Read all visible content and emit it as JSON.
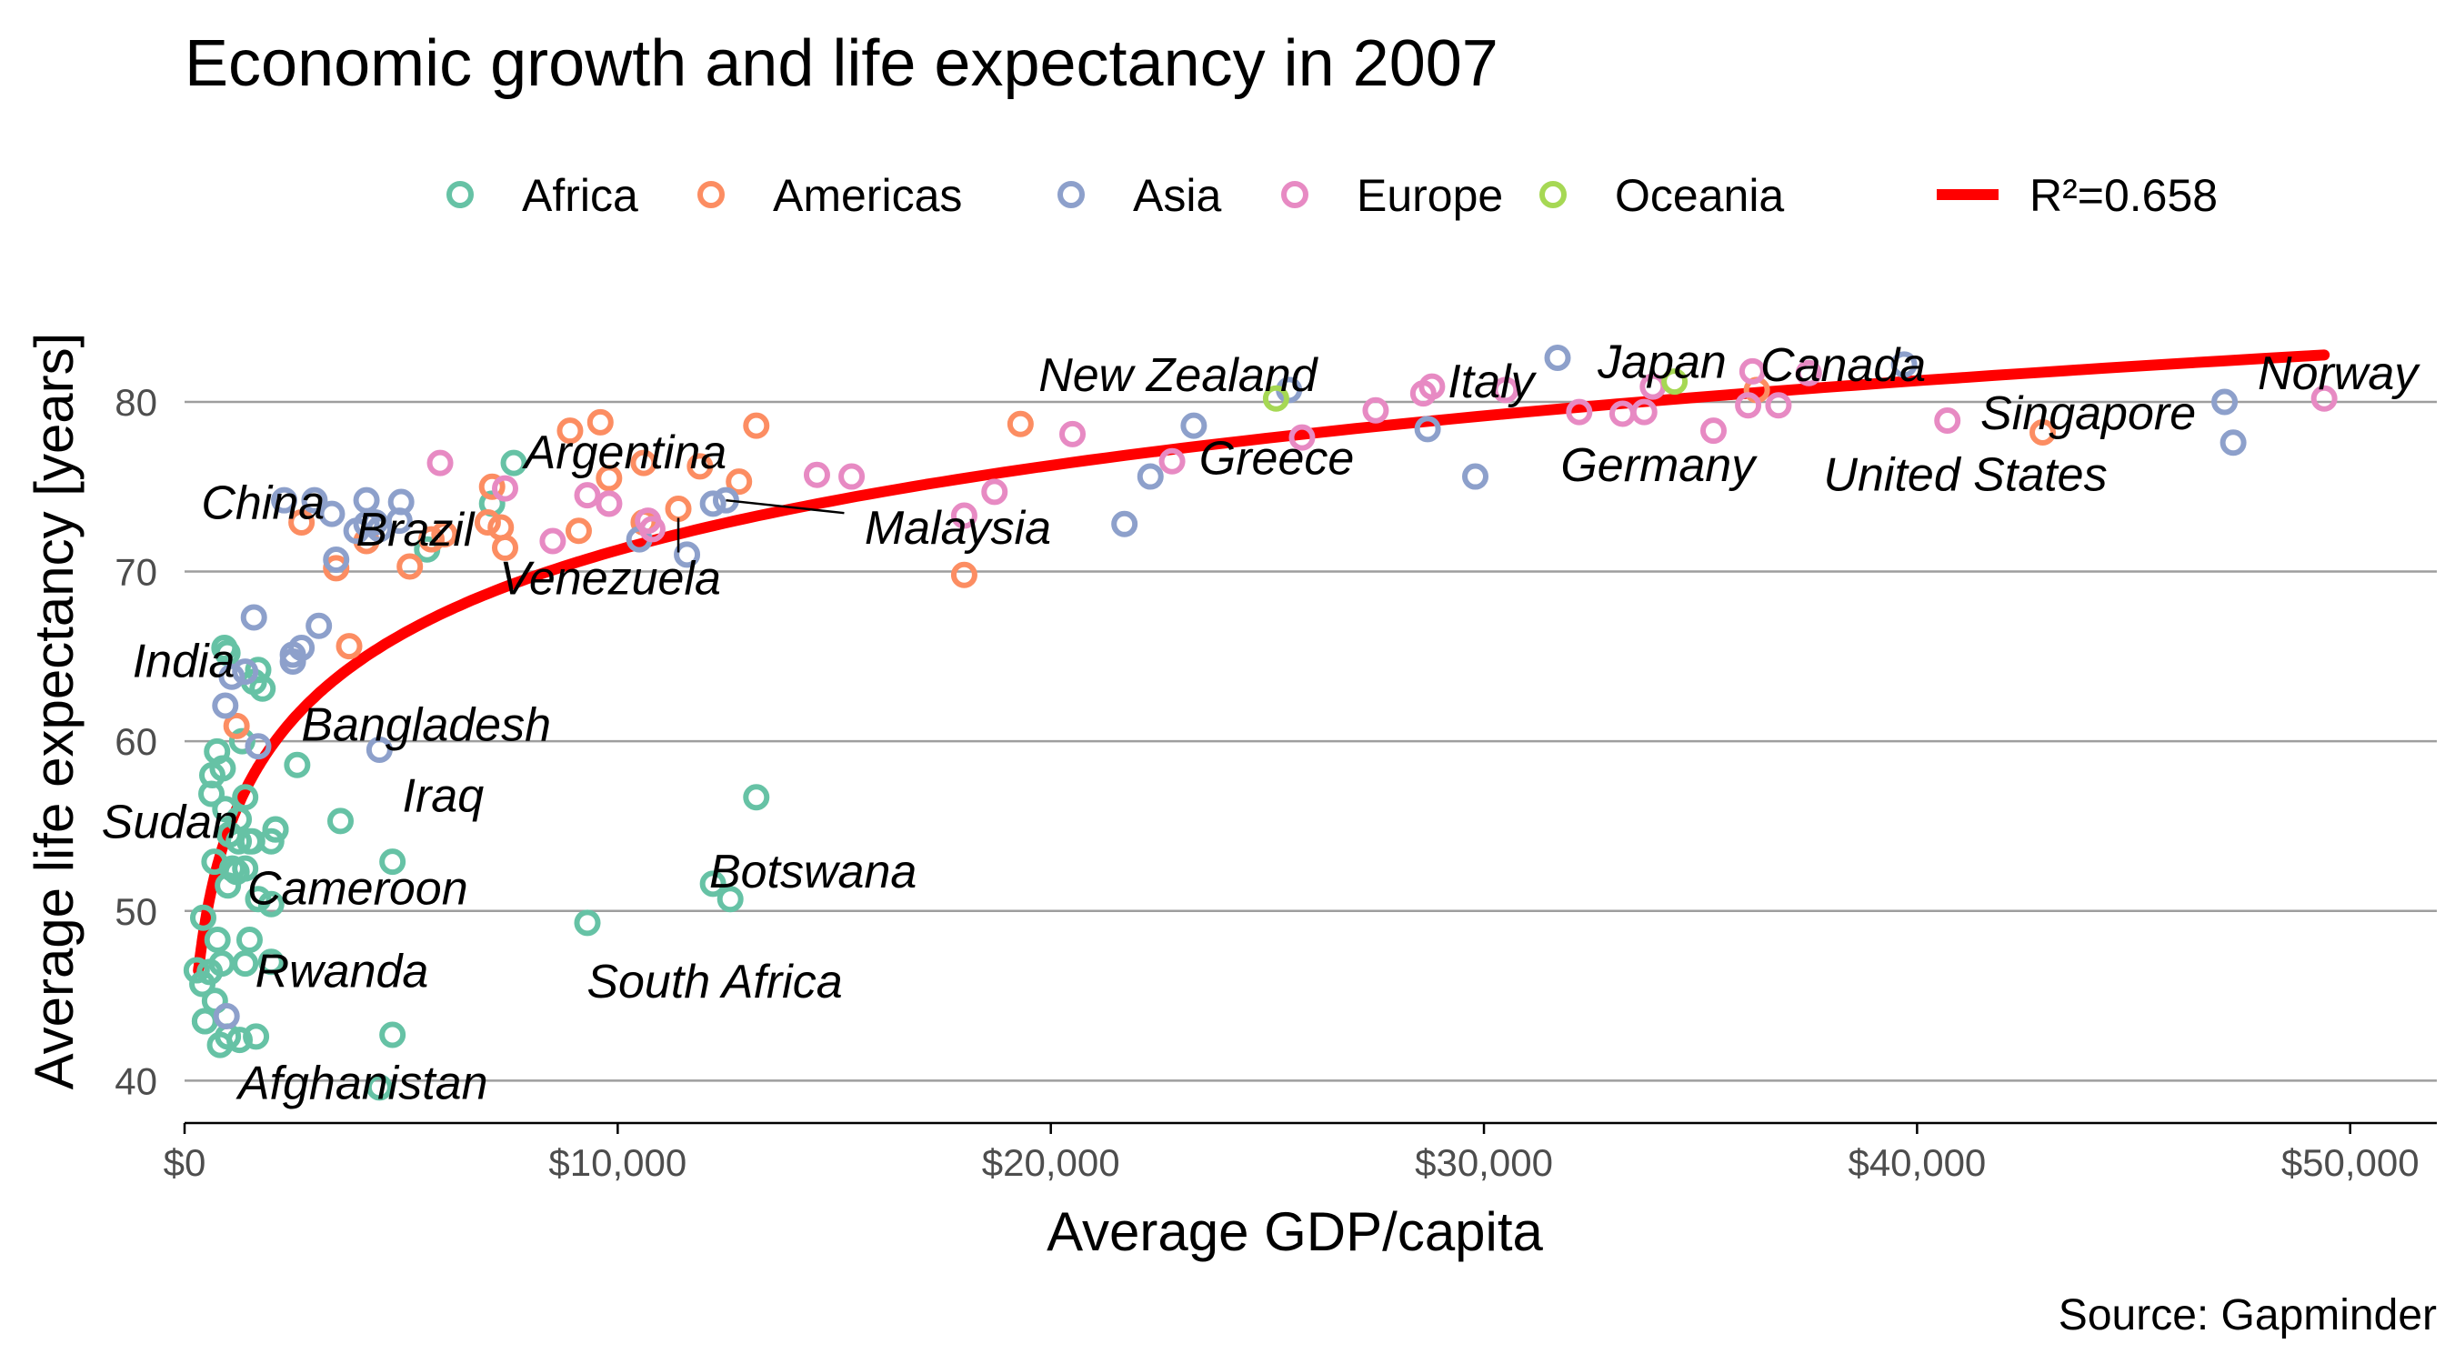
{
  "chart_data": {
    "type": "scatter",
    "title": "Economic growth and life expectancy in 2007",
    "xlabel": "Average GDP/capita",
    "ylabel": "Average life expectancy [years]",
    "caption": "Source: Gapminder",
    "xlim": [
      0,
      52000
    ],
    "ylim": [
      37.5,
      86
    ],
    "xticks": [
      0,
      10000,
      20000,
      30000,
      40000,
      50000
    ],
    "xtick_labels": [
      "$0",
      "$10,000",
      "$20,000",
      "$30,000",
      "$40,000",
      "$50,000"
    ],
    "yticks": [
      40,
      50,
      60,
      70,
      80
    ],
    "ytick_labels": [
      "40",
      "50",
      "60",
      "70",
      "80"
    ],
    "grid": "horizontal",
    "legend_position": "top",
    "fit": {
      "label": "R²=0.658",
      "color": "#ff0000",
      "model": "logarithmic",
      "intercept": 4.95,
      "slope": 7.2
    },
    "series": [
      {
        "name": "Africa",
        "color": "#66c2a5",
        "points": [
          [
            7600,
            76.4
          ],
          [
            2100,
            54.8
          ],
          [
            1400,
            56.7
          ],
          [
            12600,
            50.7
          ],
          [
            1200,
            52.3
          ],
          [
            430,
            49.6
          ],
          [
            2000,
            50.4
          ],
          [
            700,
            44.7
          ],
          [
            1700,
            50.7
          ],
          [
            990,
            65.2
          ],
          [
            280,
            46.5
          ],
          [
            3600,
            55.3
          ],
          [
            1500,
            48.3
          ],
          [
            2100,
            54.8
          ],
          [
            5600,
            71.3
          ],
          [
            12200,
            51.6
          ],
          [
            640,
            58.0
          ],
          [
            690,
            52.9
          ],
          [
            13200,
            56.7
          ],
          [
            750,
            59.4
          ],
          [
            1330,
            60.0
          ],
          [
            940,
            56.0
          ],
          [
            580,
            46.4
          ],
          [
            1500,
            54.1
          ],
          [
            1560,
            54.1
          ],
          [
            2000,
            47.0
          ],
          [
            410,
            45.7
          ],
          [
            760,
            48.3
          ],
          [
            1040,
            54.5
          ],
          [
            1800,
            63.1
          ],
          [
            1700,
            64.2
          ],
          [
            820,
            42.1
          ],
          [
            4800,
            52.9
          ],
          [
            620,
            56.9
          ],
          [
            1400,
            46.9
          ],
          [
            860,
            46.9
          ],
          [
            470,
            43.5
          ],
          [
            1600,
            63.5
          ],
          [
            1250,
            55.4
          ],
          [
            1250,
            54.1
          ],
          [
            1000,
            42.6
          ],
          [
            9300,
            49.3
          ],
          [
            2600,
            58.6
          ],
          [
            1100,
            52.5
          ],
          [
            880,
            58.4
          ],
          [
            7100,
            74.0
          ],
          [
            1000,
            51.5
          ],
          [
            1270,
            42.4
          ],
          [
            470,
            43.5
          ],
          [
            4800,
            42.7
          ],
          [
            4500,
            39.6
          ],
          [
            1650,
            42.6
          ],
          [
            920,
            65.5
          ],
          [
            2000,
            54.1
          ],
          [
            1400,
            52.5
          ]
        ]
      },
      {
        "name": "Americas",
        "color": "#fc8d62",
        "points": [
          [
            12800,
            75.3
          ],
          [
            3800,
            65.6
          ],
          [
            9100,
            72.4
          ],
          [
            36300,
            80.7
          ],
          [
            13200,
            78.6
          ],
          [
            7000,
            72.9
          ],
          [
            9600,
            78.8
          ],
          [
            8900,
            78.3
          ],
          [
            6000,
            72.2
          ],
          [
            7100,
            75.0
          ],
          [
            5700,
            71.9
          ],
          [
            5200,
            70.3
          ],
          [
            1200,
            60.9
          ],
          [
            3500,
            70.2
          ],
          [
            7300,
            72.6
          ],
          [
            11900,
            76.2
          ],
          [
            2700,
            72.9
          ],
          [
            9800,
            75.5
          ],
          [
            4200,
            71.8
          ],
          [
            7400,
            71.4
          ],
          [
            18000,
            69.8
          ],
          [
            10600,
            72.9
          ],
          [
            19300,
            78.7
          ],
          [
            42900,
            78.2
          ],
          [
            10600,
            76.4
          ],
          [
            11400,
            73.7
          ]
        ]
      },
      {
        "name": "Asia",
        "color": "#8da0cb",
        "points": [
          [
            970,
            43.8
          ],
          [
            29800,
            75.6
          ],
          [
            1400,
            64.1
          ],
          [
            1700,
            59.7
          ],
          [
            4960,
            73.0
          ],
          [
            39700,
            82.2
          ],
          [
            2500,
            64.7
          ],
          [
            3500,
            70.7
          ],
          [
            11600,
            71.0
          ],
          [
            4500,
            59.5
          ],
          [
            25500,
            80.7
          ],
          [
            31700,
            82.6
          ],
          [
            4500,
            72.5
          ],
          [
            1600,
            67.3
          ],
          [
            23300,
            78.6
          ],
          [
            47300,
            77.6
          ],
          [
            10500,
            71.9
          ],
          [
            12500,
            74.2
          ],
          [
            3100,
            66.8
          ],
          [
            940,
            62.1
          ],
          [
            1090,
            63.8
          ],
          [
            22300,
            75.6
          ],
          [
            21700,
            72.8
          ],
          [
            47100,
            80.0
          ],
          [
            3970,
            72.4
          ],
          [
            4200,
            74.2
          ],
          [
            28700,
            78.4
          ],
          [
            4200,
            72.8
          ],
          [
            2700,
            65.5
          ],
          [
            3000,
            74.2
          ],
          [
            2300,
            74.2
          ],
          [
            3400,
            73.4
          ],
          [
            4400,
            72.9
          ],
          [
            5000,
            74.1
          ],
          [
            2500,
            65.1
          ],
          [
            12200,
            74.0
          ]
        ]
      },
      {
        "name": "Europe",
        "color": "#e78ac3",
        "points": [
          [
            5900,
            76.4
          ],
          [
            36100,
            79.8
          ],
          [
            33700,
            79.4
          ],
          [
            7400,
            74.9
          ],
          [
            10700,
            73.0
          ],
          [
            14600,
            75.7
          ],
          [
            22800,
            76.5
          ],
          [
            35300,
            78.3
          ],
          [
            33200,
            79.3
          ],
          [
            30500,
            80.7
          ],
          [
            32200,
            79.4
          ],
          [
            27500,
            79.5
          ],
          [
            18000,
            73.3
          ],
          [
            36200,
            81.8
          ],
          [
            40700,
            78.9
          ],
          [
            28600,
            80.5
          ],
          [
            9300,
            74.5
          ],
          [
            9800,
            74.0
          ],
          [
            36800,
            79.8
          ],
          [
            49400,
            80.2
          ],
          [
            15400,
            75.6
          ],
          [
            20500,
            78.1
          ],
          [
            10800,
            72.5
          ],
          [
            9800,
            74.0
          ],
          [
            8500,
            71.8
          ],
          [
            18700,
            74.7
          ],
          [
            25800,
            77.9
          ],
          [
            28800,
            80.9
          ],
          [
            37500,
            81.7
          ],
          [
            33900,
            80.9
          ]
        ]
      },
      {
        "name": "Oceania",
        "color": "#a6d854",
        "points": [
          [
            34400,
            81.2
          ],
          [
            25200,
            80.2
          ]
        ]
      }
    ],
    "annotations": [
      {
        "text": "Norway",
        "x": 49400,
        "y": 80.2,
        "dx": 15,
        "dy": -28,
        "anchor": "middle"
      },
      {
        "text": "Singapore",
        "x": 47100,
        "y": 80.0,
        "dx": -150,
        "dy": 12,
        "anchor": "middle"
      },
      {
        "text": "United States",
        "x": 42900,
        "y": 78.2,
        "dx": -85,
        "dy": 46,
        "anchor": "middle"
      },
      {
        "text": "Canada",
        "x": 36300,
        "y": 80.7,
        "dx": 95,
        "dy": -28,
        "anchor": "middle"
      },
      {
        "text": "Japan",
        "x": 31700,
        "y": 82.6,
        "dx": 115,
        "dy": 4,
        "anchor": "middle"
      },
      {
        "text": "Germany",
        "x": 33700,
        "y": 79.4,
        "dx": 15,
        "dy": 58,
        "anchor": "middle"
      },
      {
        "text": "Italy",
        "x": 28800,
        "y": 80.9,
        "dx": 65,
        "dy": -6,
        "anchor": "middle"
      },
      {
        "text": "New Zealand",
        "x": 25200,
        "y": 80.2,
        "dx": -108,
        "dy": -26,
        "anchor": "middle"
      },
      {
        "text": "Greece",
        "x": 22800,
        "y": 76.5,
        "dx": 115,
        "dy": -4,
        "anchor": "middle"
      },
      {
        "text": "Malaysia",
        "x": 12500,
        "y": 74.2,
        "dx": 255,
        "dy": 30,
        "anchor": "middle",
        "leader": [
          0,
          0,
          130,
          14
        ]
      },
      {
        "text": "Argentina",
        "x": 10600,
        "y": 76.4,
        "dx": -20,
        "dy": -12,
        "anchor": "middle"
      },
      {
        "text": "Venezuela",
        "x": 11400,
        "y": 73.7,
        "dx": -75,
        "dy": 76,
        "anchor": "middle",
        "leader": [
          0,
          10,
          0,
          48
        ]
      },
      {
        "text": "Brazil",
        "x": 9100,
        "y": 72.4,
        "dx": -180,
        "dy": -2,
        "anchor": "middle"
      },
      {
        "text": "China",
        "x": 4960,
        "y": 73.0,
        "dx": -150,
        "dy": -20,
        "anchor": "middle"
      },
      {
        "text": "India",
        "x": 2500,
        "y": 64.7,
        "dx": -120,
        "dy": -1,
        "anchor": "middle"
      },
      {
        "text": "Bangladesh",
        "x": 1400,
        "y": 64.1,
        "dx": 199,
        "dy": 58,
        "anchor": "middle"
      },
      {
        "text": "Iraq",
        "x": 4500,
        "y": 59.5,
        "dx": 70,
        "dy": 50,
        "anchor": "middle"
      },
      {
        "text": "Sudan",
        "x": 2600,
        "y": 58.6,
        "dx": -140,
        "dy": 62,
        "anchor": "middle"
      },
      {
        "text": "Cameroon",
        "x": 2000,
        "y": 50.4,
        "dx": 95,
        "dy": -18,
        "anchor": "middle"
      },
      {
        "text": "Rwanda",
        "x": 860,
        "y": 46.9,
        "dx": 132,
        "dy": 8,
        "anchor": "middle"
      },
      {
        "text": "Afghanistan",
        "x": 970,
        "y": 43.8,
        "dx": 150,
        "dy": 73,
        "anchor": "middle"
      },
      {
        "text": "Botswana",
        "x": 12200,
        "y": 51.6,
        "dx": 110,
        "dy": -14,
        "anchor": "middle"
      },
      {
        "text": "South Africa",
        "x": 9300,
        "y": 49.3,
        "dx": 140,
        "dy": 64,
        "anchor": "middle"
      }
    ]
  }
}
